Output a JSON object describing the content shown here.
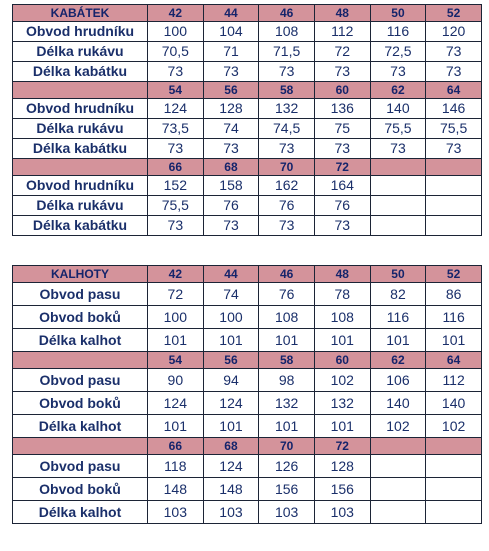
{
  "jacket": {
    "title": "KABÁTEK",
    "blocks": [
      {
        "sizes": [
          "42",
          "44",
          "46",
          "48",
          "50",
          "52"
        ],
        "rows": [
          {
            "label": "Obvod hrudníku",
            "values": [
              "100",
              "104",
              "108",
              "112",
              "116",
              "120"
            ]
          },
          {
            "label": "Délka rukávu",
            "values": [
              "70,5",
              "71",
              "71,5",
              "72",
              "72,5",
              "73"
            ]
          },
          {
            "label": "Délka kabátku",
            "values": [
              "73",
              "73",
              "73",
              "73",
              "73",
              "73"
            ]
          }
        ]
      },
      {
        "sizes": [
          "54",
          "56",
          "58",
          "60",
          "62",
          "64"
        ],
        "rows": [
          {
            "label": "Obvod hrudníku",
            "values": [
              "124",
              "128",
              "132",
              "136",
              "140",
              "146"
            ]
          },
          {
            "label": "Délka rukávu",
            "values": [
              "73,5",
              "74",
              "74,5",
              "75",
              "75,5",
              "75,5"
            ]
          },
          {
            "label": "Délka kabátku",
            "values": [
              "73",
              "73",
              "73",
              "73",
              "73",
              "73"
            ]
          }
        ]
      },
      {
        "sizes": [
          "66",
          "68",
          "70",
          "72",
          "",
          ""
        ],
        "rows": [
          {
            "label": "Obvod hrudníku",
            "values": [
              "152",
              "158",
              "162",
              "164",
              "",
              ""
            ]
          },
          {
            "label": "Délka rukávu",
            "values": [
              "75,5",
              "76",
              "76",
              "76",
              "",
              ""
            ]
          },
          {
            "label": "Délka kabátku",
            "values": [
              "73",
              "73",
              "73",
              "73",
              "",
              ""
            ]
          }
        ]
      }
    ]
  },
  "pants": {
    "title": "KALHOTY",
    "blocks": [
      {
        "sizes": [
          "42",
          "44",
          "46",
          "48",
          "50",
          "52"
        ],
        "rows": [
          {
            "label": "Obvod pasu",
            "values": [
              "72",
              "74",
              "76",
              "78",
              "82",
              "86"
            ]
          },
          {
            "label": "Obvod boků",
            "values": [
              "100",
              "100",
              "108",
              "108",
              "116",
              "116"
            ]
          },
          {
            "label": "Délka kalhot",
            "values": [
              "101",
              "101",
              "101",
              "101",
              "101",
              "101"
            ]
          }
        ]
      },
      {
        "sizes": [
          "54",
          "56",
          "58",
          "60",
          "62",
          "64"
        ],
        "rows": [
          {
            "label": "Obvod pasu",
            "values": [
              "90",
              "94",
              "98",
              "102",
              "106",
              "112"
            ]
          },
          {
            "label": "Obvod boků",
            "values": [
              "124",
              "124",
              "132",
              "132",
              "140",
              "140"
            ]
          },
          {
            "label": "Délka kalhot",
            "values": [
              "101",
              "101",
              "101",
              "101",
              "102",
              "102"
            ]
          }
        ]
      },
      {
        "sizes": [
          "66",
          "68",
          "70",
          "72",
          "",
          ""
        ],
        "rows": [
          {
            "label": "Obvod pasu",
            "values": [
              "118",
              "124",
              "126",
              "128",
              "",
              ""
            ]
          },
          {
            "label": "Obvod boků",
            "values": [
              "148",
              "148",
              "156",
              "156",
              "",
              ""
            ]
          },
          {
            "label": "Délka kalhot",
            "values": [
              "103",
              "103",
              "103",
              "103",
              "",
              ""
            ]
          }
        ]
      }
    ]
  }
}
